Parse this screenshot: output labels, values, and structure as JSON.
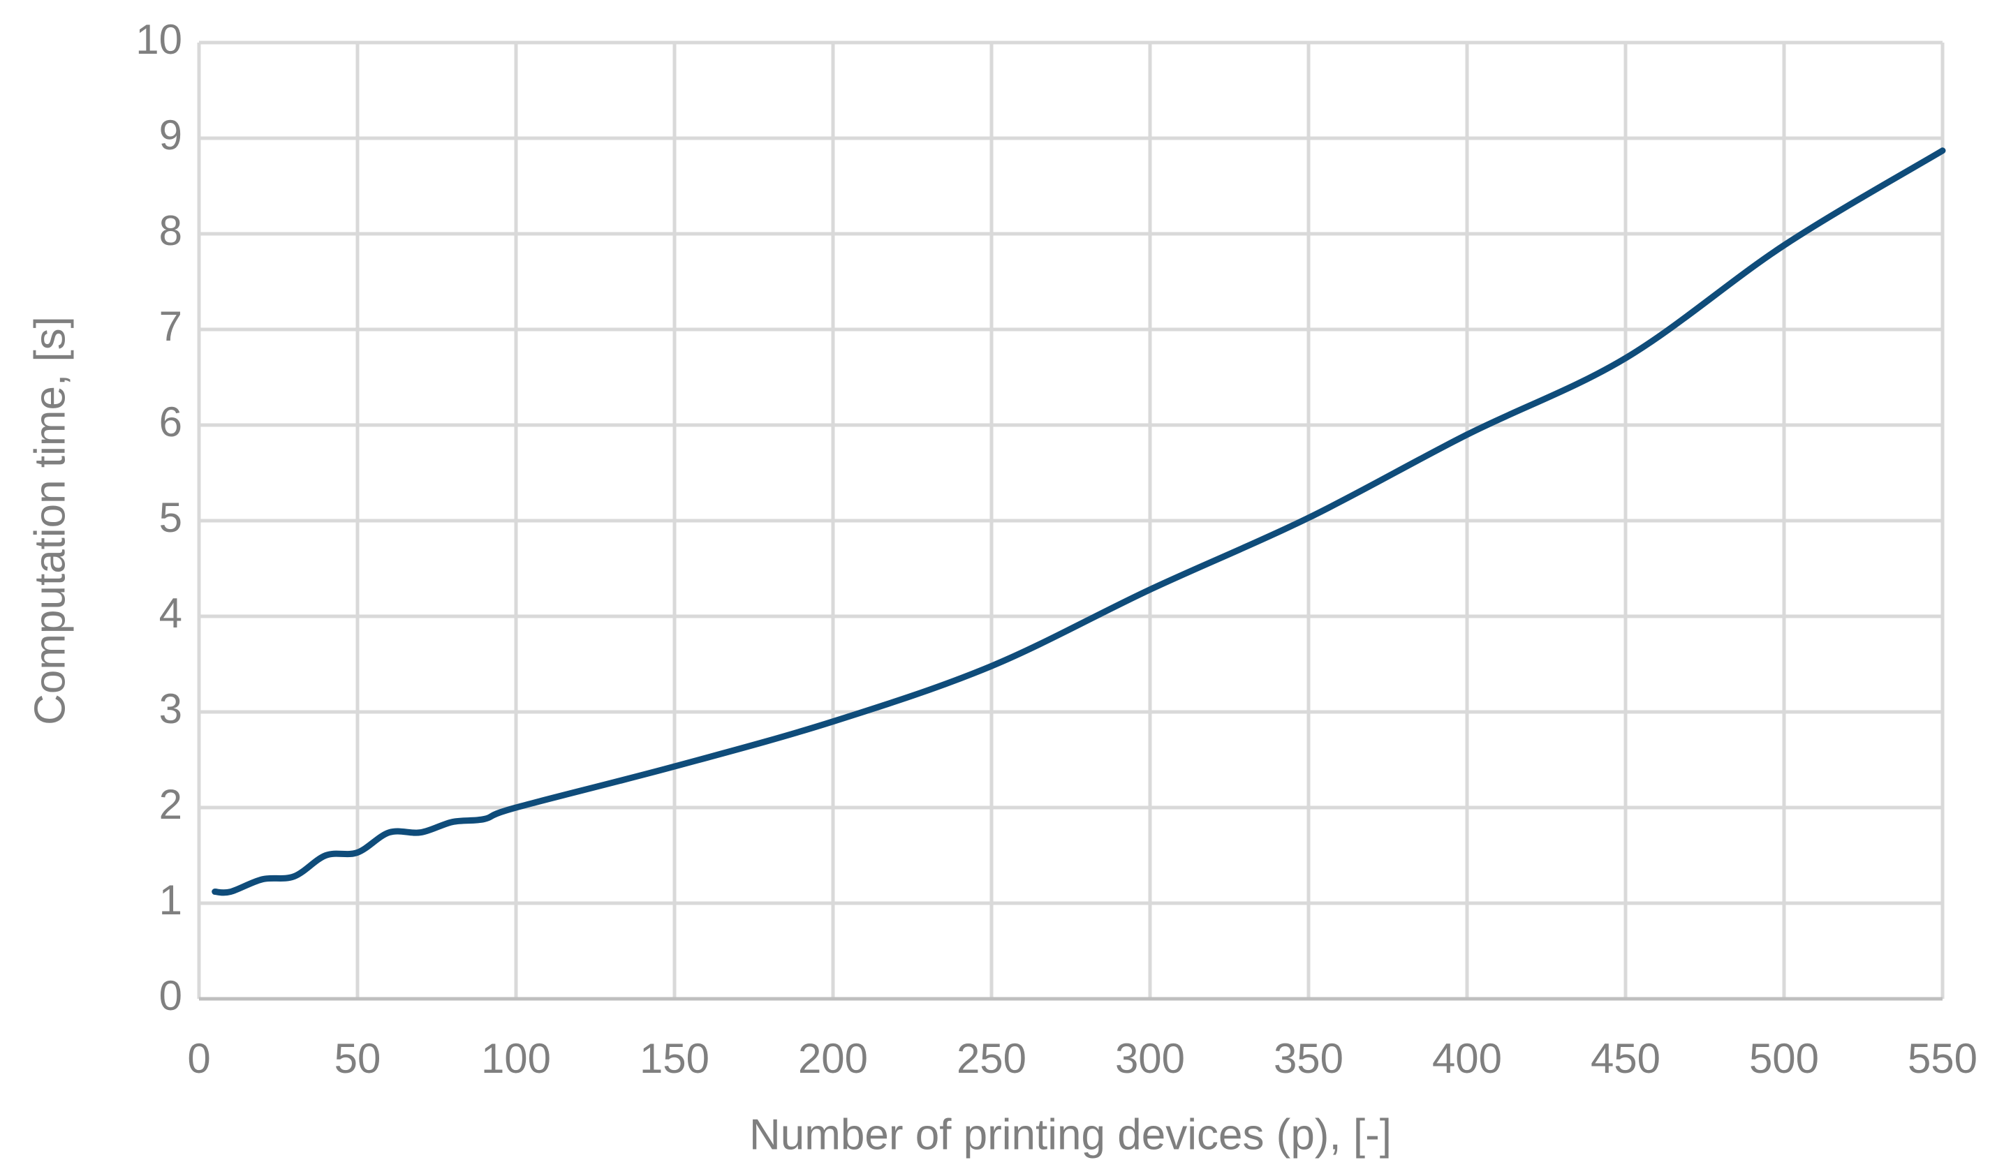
{
  "chart_data": {
    "type": "line",
    "x_label": "Number of printing devices (p), [-]",
    "y_label": "Computation time, [s]",
    "x": [
      5,
      10,
      20,
      30,
      40,
      50,
      60,
      70,
      80,
      90,
      100,
      150,
      200,
      250,
      300,
      350,
      400,
      450,
      500,
      550
    ],
    "series": [
      {
        "name": "Computation time",
        "color": "#0f4c7a",
        "values": [
          1.12,
          1.12,
          1.25,
          1.28,
          1.5,
          1.53,
          1.74,
          1.74,
          1.85,
          1.88,
          2.0,
          2.43,
          2.9,
          3.48,
          4.28,
          5.03,
          5.9,
          6.7,
          7.88,
          8.87
        ]
      }
    ],
    "xlim": [
      0,
      550
    ],
    "xticks": [
      0,
      50,
      100,
      150,
      200,
      250,
      300,
      350,
      400,
      450,
      500,
      550
    ],
    "ylim": [
      0,
      10
    ],
    "yticks": [
      0,
      1,
      2,
      3,
      4,
      5,
      6,
      7,
      8,
      9,
      10
    ],
    "grid": true,
    "grid_color": "#d9d9d9"
  }
}
